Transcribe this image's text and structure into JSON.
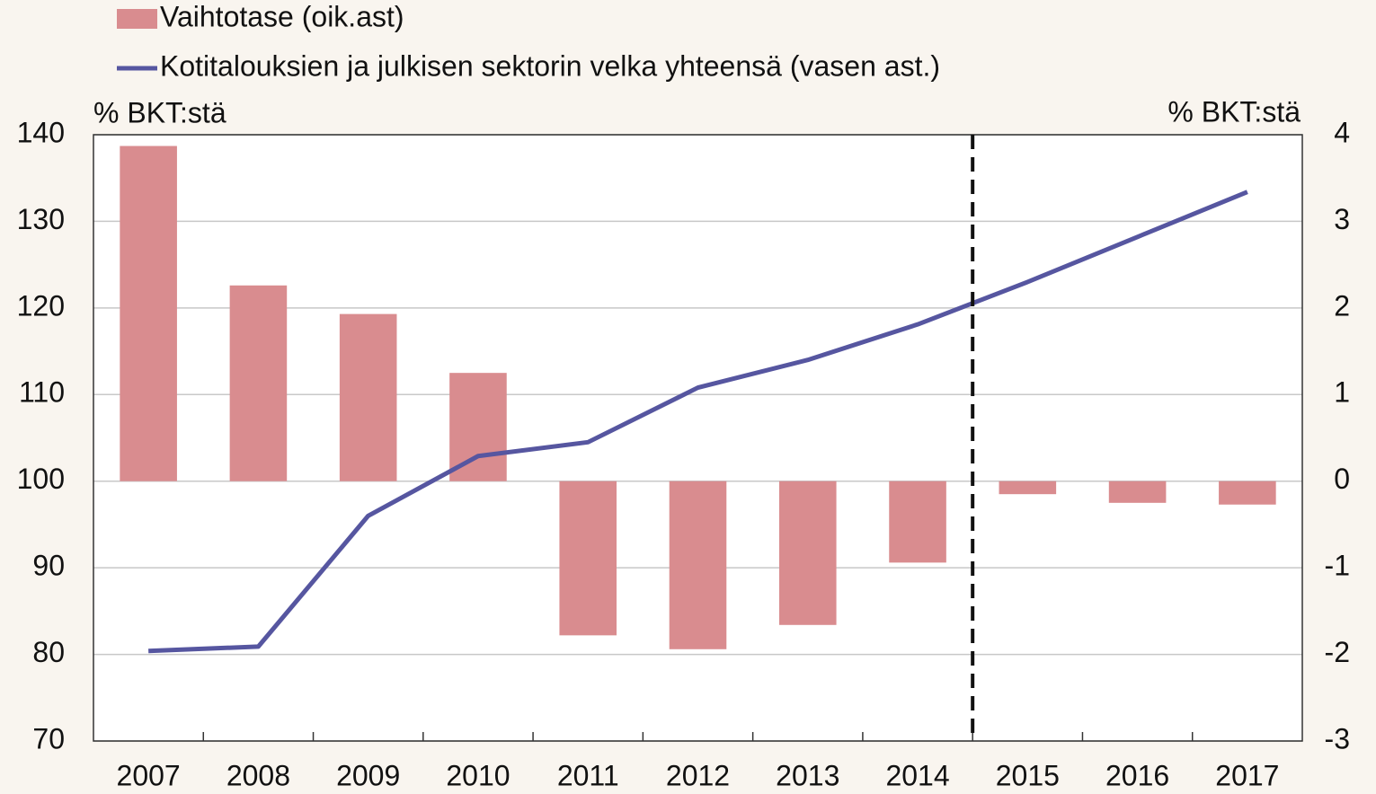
{
  "chart_data": {
    "type": "bar_line",
    "categories": [
      "2007",
      "2008",
      "2009",
      "2010",
      "2011",
      "2012",
      "2013",
      "2014",
      "2015",
      "2016",
      "2017"
    ],
    "series": [
      {
        "name": "Vaihtotase (oik.ast)",
        "type": "bar",
        "axis": "y2",
        "color": "#d98c8f",
        "values": [
          3.87,
          2.26,
          1.93,
          1.25,
          -1.78,
          -1.94,
          -1.66,
          -0.94,
          -0.15,
          -0.25,
          -0.27
        ]
      },
      {
        "name": "Kotitalouksien ja julkisen sektorin velka yhteensä (vasen ast.)",
        "type": "line",
        "axis": "y",
        "color": "#5656a0",
        "values": [
          80.4,
          80.9,
          96.0,
          102.9,
          104.5,
          110.8,
          114.0,
          118.1,
          123.0,
          128.2,
          133.4
        ]
      }
    ],
    "ylabel": "% BKT:stä",
    "y2label": "% BKT:stä",
    "ylim": [
      70,
      140
    ],
    "yticks": [
      70,
      80,
      90,
      100,
      110,
      120,
      130,
      140
    ],
    "y2lim": [
      -3,
      4
    ],
    "y2ticks": [
      -3,
      -2,
      -1,
      0,
      1,
      2,
      3,
      4
    ],
    "grid": true,
    "divider_after_category": 7
  }
}
